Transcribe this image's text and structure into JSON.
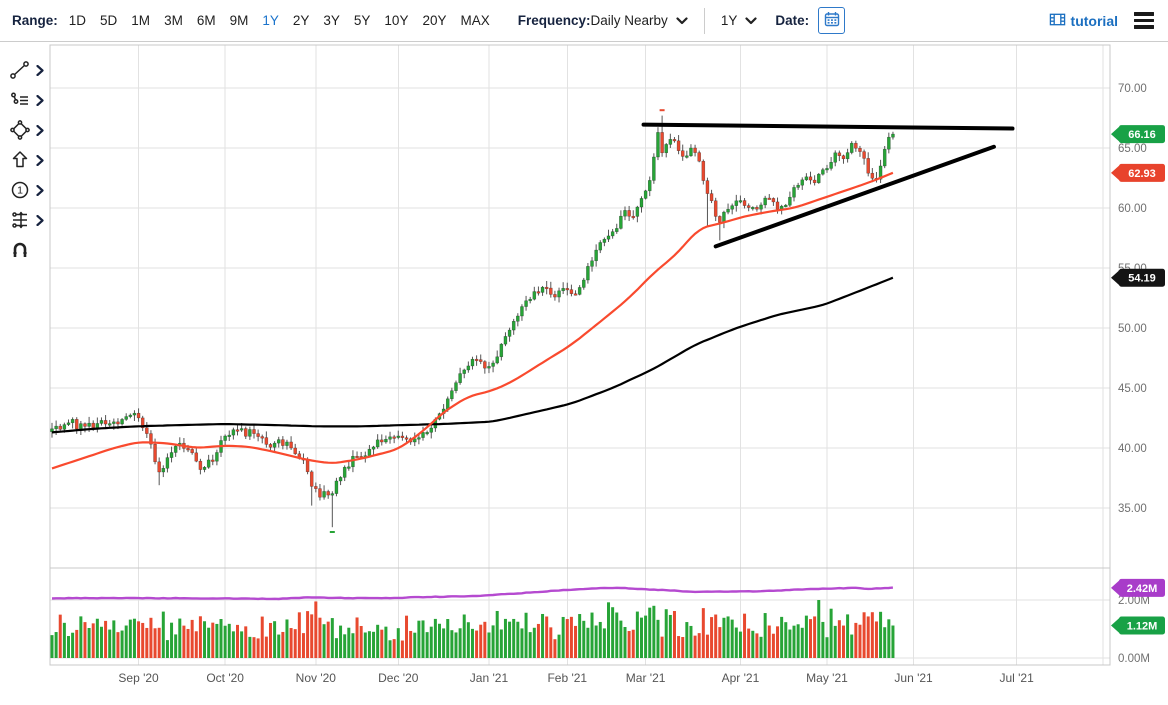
{
  "toolbar": {
    "range_label": "Range:",
    "range_options": [
      "1D",
      "5D",
      "1M",
      "3M",
      "6M",
      "9M",
      "1Y",
      "2Y",
      "3Y",
      "5Y",
      "10Y",
      "20Y",
      "MAX"
    ],
    "range_active": "1Y",
    "frequency_label": "Frequency:",
    "frequency_value": "Daily Nearby",
    "period_value": "1Y",
    "date_label": "Date:",
    "tutorial_label": "tutorial"
  },
  "sidebar": {
    "tools": [
      {
        "id": "trendline",
        "name": "trendline-tool",
        "has_submenu": true
      },
      {
        "id": "annotation",
        "name": "annotation-tool",
        "has_submenu": true
      },
      {
        "id": "shape",
        "name": "shape-tool",
        "has_submenu": true
      },
      {
        "id": "arrow",
        "name": "arrow-up-tool",
        "has_submenu": true
      },
      {
        "id": "number",
        "name": "number-annotation-tool",
        "has_submenu": true
      },
      {
        "id": "fibonacci",
        "name": "fibonacci-tool",
        "has_submenu": true
      },
      {
        "id": "magnet",
        "name": "magnet-snap-tool",
        "has_submenu": false
      }
    ]
  },
  "colors": {
    "accent_blue": "#1b74cc",
    "navy": "#16233f",
    "candle_up": "#27a437",
    "candle_down": "#e8492f",
    "ma_fast": "#f94a2e",
    "line_black": "#000000",
    "open_interest": "#b54ad0",
    "badge_green": "#18a146",
    "badge_red": "#e8432c",
    "badge_black": "#141414",
    "badge_purple": "#a83cc9",
    "grid": "#e2e2e2",
    "border": "#c8c8c8",
    "axis_text": "#707070",
    "month_text": "#555555",
    "wick": "#555555"
  },
  "chart_data": {
    "type": "candlestick",
    "panels": [
      "price",
      "volume"
    ],
    "y_axis": {
      "side": "right",
      "ticks": [
        70,
        65,
        60,
        55,
        50,
        45,
        40,
        35
      ],
      "tick_format": "0.00"
    },
    "volume_axis": {
      "ticks": [
        {
          "value": 2,
          "label": "2.00M"
        },
        {
          "value": 0,
          "label": "0.00M"
        }
      ]
    },
    "x_axis": {
      "months": [
        {
          "d": 21,
          "label": "Sep '20"
        },
        {
          "d": 42,
          "label": "Oct '20"
        },
        {
          "d": 64,
          "label": "Nov '20"
        },
        {
          "d": 84,
          "label": "Dec '20"
        },
        {
          "d": 106,
          "label": "Jan '21"
        },
        {
          "d": 125,
          "label": "Feb '21"
        },
        {
          "d": 144,
          "label": "Mar '21"
        },
        {
          "d": 167,
          "label": "Apr '21"
        },
        {
          "d": 188,
          "label": "May '21"
        },
        {
          "d": 209,
          "label": "Jun '21"
        },
        {
          "d": 234,
          "label": "Jul '21"
        },
        {
          "d": 255,
          "label": ""
        }
      ]
    },
    "series": {
      "price_close_keypoints": [
        [
          0,
          41.6
        ],
        [
          4,
          42.1
        ],
        [
          8,
          41.8
        ],
        [
          12,
          42.3
        ],
        [
          16,
          42.0
        ],
        [
          20,
          42.9
        ],
        [
          23,
          41.2
        ],
        [
          26,
          38.0
        ],
        [
          28,
          39.2
        ],
        [
          31,
          40.4
        ],
        [
          34,
          39.6
        ],
        [
          36,
          38.2
        ],
        [
          39,
          38.9
        ],
        [
          42,
          41.0
        ],
        [
          45,
          41.5
        ],
        [
          49,
          41.2
        ],
        [
          52,
          40.3
        ],
        [
          55,
          40.7
        ],
        [
          58,
          40.0
        ],
        [
          61,
          39.0
        ],
        [
          63,
          36.8
        ],
        [
          65,
          35.9
        ],
        [
          68,
          36.2
        ],
        [
          71,
          38.4
        ],
        [
          74,
          39.3
        ],
        [
          77,
          39.9
        ],
        [
          80,
          40.5
        ],
        [
          84,
          41.0
        ],
        [
          87,
          40.5
        ],
        [
          90,
          41.3
        ],
        [
          93,
          42.4
        ],
        [
          96,
          44.1
        ],
        [
          99,
          46.2
        ],
        [
          102,
          47.4
        ],
        [
          104,
          47.2
        ],
        [
          106,
          46.8
        ],
        [
          108,
          47.6
        ],
        [
          110,
          49.3
        ],
        [
          113,
          51.0
        ],
        [
          116,
          52.4
        ],
        [
          119,
          53.4
        ],
        [
          121,
          52.8
        ],
        [
          123,
          53.1
        ],
        [
          125,
          53.2
        ],
        [
          127,
          52.8
        ],
        [
          129,
          54.0
        ],
        [
          131,
          55.6
        ],
        [
          134,
          57.4
        ],
        [
          137,
          58.3
        ],
        [
          139,
          59.8
        ],
        [
          141,
          59.3
        ],
        [
          143,
          60.8
        ],
        [
          145,
          62.3
        ],
        [
          147,
          66.3
        ],
        [
          148,
          64.6
        ],
        [
          149,
          65.3
        ],
        [
          151,
          65.6
        ],
        [
          153,
          64.3
        ],
        [
          155,
          65.0
        ],
        [
          157,
          63.9
        ],
        [
          159,
          61.2
        ],
        [
          161,
          59.3
        ],
        [
          162,
          58.8
        ],
        [
          164,
          59.9
        ],
        [
          166,
          60.6
        ],
        [
          168,
          60.2
        ],
        [
          171,
          59.9
        ],
        [
          174,
          60.8
        ],
        [
          176,
          59.9
        ],
        [
          179,
          60.9
        ],
        [
          181,
          61.9
        ],
        [
          183,
          62.6
        ],
        [
          185,
          62.1
        ],
        [
          188,
          63.3
        ],
        [
          190,
          64.6
        ],
        [
          192,
          64.1
        ],
        [
          194,
          65.4
        ],
        [
          196,
          64.7
        ],
        [
          198,
          62.9
        ],
        [
          200,
          62.4
        ],
        [
          202,
          64.9
        ],
        [
          203,
          65.9
        ],
        [
          204,
          66.16
        ]
      ],
      "wick_overrides": [
        {
          "d": 26,
          "low": 36.9
        },
        {
          "d": 63,
          "low": 35.2
        },
        {
          "d": 68,
          "low": 33.4
        },
        {
          "d": 148,
          "high": 67.7
        },
        {
          "d": 159,
          "low": 58.4
        },
        {
          "d": 162,
          "low": 57.3
        }
      ],
      "ma_fast_red_keypoints": [
        [
          0,
          38.3
        ],
        [
          8,
          39.2
        ],
        [
          15,
          40.0
        ],
        [
          21,
          40.5
        ],
        [
          28,
          40.4
        ],
        [
          35,
          40.0
        ],
        [
          42,
          40.2
        ],
        [
          48,
          40.1
        ],
        [
          55,
          39.6
        ],
        [
          62,
          39.0
        ],
        [
          68,
          38.7
        ],
        [
          75,
          39.1
        ],
        [
          84,
          39.9
        ],
        [
          90,
          41.4
        ],
        [
          95,
          43.0
        ],
        [
          101,
          44.3
        ],
        [
          107,
          44.8
        ],
        [
          112,
          45.6
        ],
        [
          118,
          46.9
        ],
        [
          126,
          48.6
        ],
        [
          134,
          50.8
        ],
        [
          140,
          52.5
        ],
        [
          146,
          54.6
        ],
        [
          151,
          56.0
        ],
        [
          157,
          58.3
        ],
        [
          163,
          58.8
        ],
        [
          168,
          59.3
        ],
        [
          174,
          59.7
        ],
        [
          180,
          60.0
        ],
        [
          186,
          60.7
        ],
        [
          192,
          61.4
        ],
        [
          198,
          62.1
        ],
        [
          204,
          62.93
        ]
      ],
      "ma_slow_black_keypoints": [
        [
          0,
          41.3
        ],
        [
          10,
          41.6
        ],
        [
          20,
          41.8
        ],
        [
          30,
          41.9
        ],
        [
          42,
          42.0
        ],
        [
          55,
          41.9
        ],
        [
          65,
          41.8
        ],
        [
          75,
          41.8
        ],
        [
          84,
          41.9
        ],
        [
          95,
          42.0
        ],
        [
          107,
          42.2
        ],
        [
          116,
          42.9
        ],
        [
          126,
          43.7
        ],
        [
          136,
          45.0
        ],
        [
          146,
          46.6
        ],
        [
          156,
          48.6
        ],
        [
          166,
          50.0
        ],
        [
          176,
          51.1
        ],
        [
          187,
          51.9
        ],
        [
          196,
          53.1
        ],
        [
          204,
          54.19
        ]
      ],
      "volume_base_keypoints": [
        [
          0,
          1.05
        ],
        [
          15,
          0.95
        ],
        [
          30,
          1.0
        ],
        [
          45,
          1.0
        ],
        [
          62,
          1.25
        ],
        [
          70,
          1.1
        ],
        [
          84,
          1.0
        ],
        [
          95,
          1.05
        ],
        [
          107,
          1.15
        ],
        [
          118,
          1.1
        ],
        [
          128,
          1.05
        ],
        [
          136,
          1.3
        ],
        [
          145,
          1.25
        ],
        [
          152,
          1.15
        ],
        [
          160,
          1.3
        ],
        [
          170,
          1.05
        ],
        [
          178,
          1.0
        ],
        [
          186,
          1.2
        ],
        [
          195,
          1.15
        ],
        [
          204,
          1.1
        ]
      ],
      "volume_spikes": [
        {
          "d": 27,
          "v": 1.6
        },
        {
          "d": 64,
          "v": 1.95
        },
        {
          "d": 100,
          "v": 1.5
        },
        {
          "d": 135,
          "v": 1.92
        },
        {
          "d": 146,
          "v": 1.8
        },
        {
          "d": 151,
          "v": 1.62
        },
        {
          "d": 158,
          "v": 1.72
        },
        {
          "d": 173,
          "v": 1.55
        },
        {
          "d": 186,
          "v": 2.0
        },
        {
          "d": 189,
          "v": 1.7
        },
        {
          "d": 204,
          "v": 1.12
        }
      ],
      "open_interest_keypoints": [
        [
          0,
          2.06
        ],
        [
          15,
          2.07
        ],
        [
          30,
          2.06
        ],
        [
          45,
          2.05
        ],
        [
          55,
          2.04
        ],
        [
          62,
          2.09
        ],
        [
          70,
          2.07
        ],
        [
          80,
          2.06
        ],
        [
          90,
          2.1
        ],
        [
          100,
          2.13
        ],
        [
          107,
          2.17
        ],
        [
          114,
          2.24
        ],
        [
          120,
          2.3
        ],
        [
          127,
          2.37
        ],
        [
          133,
          2.41
        ],
        [
          138,
          2.42
        ],
        [
          144,
          2.37
        ],
        [
          150,
          2.33
        ],
        [
          156,
          2.28
        ],
        [
          163,
          2.29
        ],
        [
          170,
          2.3
        ],
        [
          177,
          2.33
        ],
        [
          183,
          2.37
        ],
        [
          189,
          2.39
        ],
        [
          194,
          2.42
        ],
        [
          198,
          2.39
        ],
        [
          201,
          2.4
        ],
        [
          204,
          2.42
        ]
      ]
    },
    "trendlines": [
      {
        "name": "resistance-trendline",
        "d1": 143.5,
        "p1": 66.95,
        "d2": 233,
        "p2": 66.62
      },
      {
        "name": "support-trendline",
        "d1": 161,
        "p1": 56.8,
        "d2": 228.5,
        "p2": 65.1
      }
    ],
    "markers": [
      {
        "d": 148,
        "price": 68.15,
        "color_role": "candle_down"
      },
      {
        "d": 68,
        "price": 33.0,
        "color_role": "candle_up"
      }
    ],
    "badges": {
      "price": [
        {
          "label": "66.16",
          "price": 66.16,
          "color_role": "badge_green"
        },
        {
          "label": "62.93",
          "price": 62.93,
          "color_role": "badge_red"
        },
        {
          "label": "54.19",
          "price": 54.19,
          "color_role": "badge_black"
        }
      ],
      "volume": [
        {
          "label": "2.42M",
          "value": 2.42,
          "color_role": "badge_purple"
        },
        {
          "label": "1.12M",
          "value": 1.12,
          "color_role": "badge_green"
        }
      ]
    },
    "last_close": 66.16
  }
}
